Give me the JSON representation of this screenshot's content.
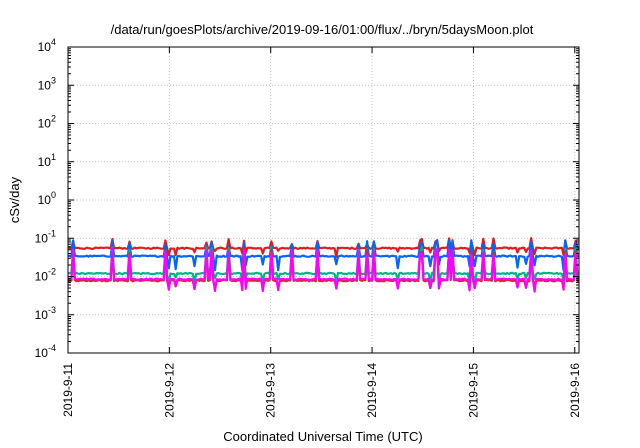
{
  "chart_data": {
    "type": "line",
    "title": "/data/run/goesPlots/archive/2019-09-16/01:00/flux/../bryn/5daysMoon.plot",
    "xlabel": "Coordinated Universal Time (UTC)",
    "ylabel": "cSv/day",
    "y_scale": "log",
    "ylim": [
      0.0001,
      10000
    ],
    "y_ticks": [
      {
        "value": 0.0001,
        "base": "10",
        "exp": "-4"
      },
      {
        "value": 0.001,
        "base": "10",
        "exp": "-3"
      },
      {
        "value": 0.01,
        "base": "10",
        "exp": "-2"
      },
      {
        "value": 0.1,
        "base": "10",
        "exp": "-1"
      },
      {
        "value": 1,
        "base": "10",
        "exp": "0"
      },
      {
        "value": 10,
        "base": "10",
        "exp": "1"
      },
      {
        "value": 100,
        "base": "10",
        "exp": "2"
      },
      {
        "value": 1000,
        "base": "10",
        "exp": "3"
      },
      {
        "value": 10000,
        "base": "10",
        "exp": "4"
      }
    ],
    "xlim": [
      "2019-09-11T00:00",
      "2019-09-16T01:00"
    ],
    "x_ticks": [
      {
        "value": "2019-09-11T00:00",
        "label": "2019-9-11"
      },
      {
        "value": "2019-09-12T00:00",
        "label": "2019-9-12"
      },
      {
        "value": "2019-09-13T00:00",
        "label": "2019-9-13"
      },
      {
        "value": "2019-09-14T00:00",
        "label": "2019-9-14"
      },
      {
        "value": "2019-09-15T00:00",
        "label": "2019-9-15"
      },
      {
        "value": "2019-09-16T00:00",
        "label": "2019-9-16"
      }
    ],
    "grid": true,
    "series": [
      {
        "color": "#e41a1c",
        "baseline": 0.055,
        "spike": 0.085,
        "dip": 0.04
      },
      {
        "color": "#0066ff",
        "baseline": 0.034,
        "spike": 0.075,
        "dip": 0.018
      },
      {
        "color": "#00b38a",
        "baseline": 0.012,
        "spike": 0.05,
        "dip": 0.008
      },
      {
        "color": "#d42a2a",
        "baseline": 0.0078,
        "spike": 0.045,
        "dip": 0.006
      },
      {
        "color": "#ff00ff",
        "baseline": 0.0085,
        "spike": 0.045,
        "dip": 0.005
      }
    ]
  }
}
